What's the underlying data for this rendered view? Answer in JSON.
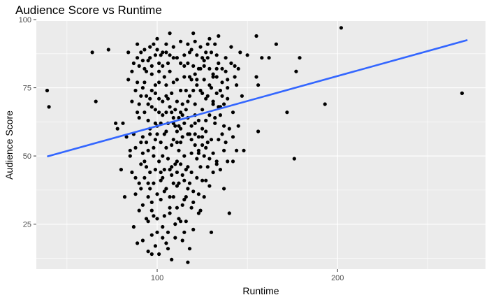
{
  "chart_data": {
    "type": "scatter",
    "title": "Audience Score vs Runtime",
    "xlabel": "Runtime",
    "ylabel": "Audience Score",
    "xlim": [
      33,
      282
    ],
    "ylim": [
      8.5,
      99.5
    ],
    "x_ticks": [
      100,
      200
    ],
    "x_minor_ticks": [
      50,
      150,
      250
    ],
    "y_ticks": [
      25,
      50,
      75,
      100
    ],
    "y_minor_ticks": [
      12.5,
      37.5,
      62.5,
      87.5
    ],
    "grid": true,
    "colors": {
      "panel": "#ebebeb",
      "grid": "#ffffff",
      "point": "#000000",
      "fit_line": "#3366ff"
    },
    "fit_line": {
      "x": [
        39,
        272
      ],
      "y": [
        49.8,
        92.5
      ]
    },
    "points": [
      [
        39,
        74
      ],
      [
        40,
        68
      ],
      [
        64,
        88
      ],
      [
        66,
        70
      ],
      [
        73,
        89
      ],
      [
        77,
        62
      ],
      [
        78,
        60
      ],
      [
        80,
        45
      ],
      [
        82,
        35
      ],
      [
        84,
        78
      ],
      [
        85,
        52
      ],
      [
        86,
        70
      ],
      [
        87,
        24
      ],
      [
        88,
        42
      ],
      [
        89,
        18
      ],
      [
        89,
        66
      ],
      [
        90,
        30
      ],
      [
        91,
        55
      ],
      [
        92,
        85
      ],
      [
        92,
        19
      ],
      [
        93,
        48
      ],
      [
        94,
        72
      ],
      [
        95,
        15
      ],
      [
        95,
        40
      ],
      [
        96,
        60
      ],
      [
        96,
        90
      ],
      [
        97,
        14
      ],
      [
        97,
        33
      ],
      [
        98,
        50
      ],
      [
        99,
        76
      ],
      [
        100,
        27
      ],
      [
        100,
        58
      ],
      [
        101,
        81
      ],
      [
        102,
        44
      ],
      [
        103,
        65
      ],
      [
        103,
        20
      ],
      [
        104,
        37
      ],
      [
        105,
        88
      ],
      [
        105,
        53
      ],
      [
        106,
        16
      ],
      [
        106,
        71
      ],
      [
        107,
        95
      ],
      [
        107,
        31
      ],
      [
        108,
        46
      ],
      [
        109,
        62
      ],
      [
        109,
        86
      ],
      [
        110,
        25
      ],
      [
        111,
        55
      ],
      [
        111,
        78
      ],
      [
        112,
        40
      ],
      [
        113,
        92
      ],
      [
        113,
        66
      ],
      [
        114,
        19
      ],
      [
        115,
        50
      ],
      [
        115,
        83
      ],
      [
        116,
        35
      ],
      [
        117,
        11
      ],
      [
        117,
        70
      ],
      [
        118,
        58
      ],
      [
        118,
        88
      ],
      [
        119,
        44
      ],
      [
        120,
        95
      ],
      [
        120,
        23
      ],
      [
        121,
        65
      ],
      [
        122,
        76
      ],
      [
        123,
        52
      ],
      [
        124,
        30
      ],
      [
        124,
        90
      ],
      [
        125,
        60
      ],
      [
        126,
        85
      ],
      [
        127,
        41
      ],
      [
        128,
        72
      ],
      [
        129,
        93
      ],
      [
        130,
        22
      ],
      [
        130,
        56
      ],
      [
        131,
        80
      ],
      [
        132,
        64
      ],
      [
        133,
        47
      ],
      [
        134,
        94
      ],
      [
        135,
        68
      ],
      [
        136,
        58
      ],
      [
        137,
        38
      ],
      [
        138,
        86
      ],
      [
        139,
        75
      ],
      [
        140,
        29
      ],
      [
        141,
        90
      ],
      [
        142,
        48
      ],
      [
        143,
        79
      ],
      [
        144,
        52
      ],
      [
        145,
        61
      ],
      [
        146,
        88
      ],
      [
        150,
        87
      ],
      [
        155,
        94
      ],
      [
        155,
        79
      ],
      [
        156,
        76
      ],
      [
        156,
        59
      ],
      [
        158,
        86
      ],
      [
        162,
        86
      ],
      [
        166,
        91
      ],
      [
        172,
        66
      ],
      [
        176,
        49
      ],
      [
        177,
        81
      ],
      [
        179,
        86
      ],
      [
        193,
        69
      ],
      [
        202,
        97
      ],
      [
        269,
        73
      ],
      [
        84,
        88
      ],
      [
        86,
        81
      ],
      [
        88,
        74
      ],
      [
        90,
        64
      ],
      [
        92,
        57
      ],
      [
        94,
        46
      ],
      [
        96,
        38
      ],
      [
        98,
        28
      ],
      [
        100,
        22
      ],
      [
        102,
        34
      ],
      [
        104,
        28
      ],
      [
        106,
        22
      ],
      [
        108,
        12
      ],
      [
        110,
        20
      ],
      [
        112,
        27
      ],
      [
        114,
        32
      ],
      [
        116,
        26
      ],
      [
        118,
        16
      ],
      [
        100,
        93
      ],
      [
        102,
        87
      ],
      [
        104,
        79
      ],
      [
        106,
        84
      ],
      [
        108,
        73
      ],
      [
        110,
        67
      ],
      [
        112,
        61
      ],
      [
        114,
        57
      ],
      [
        116,
        45
      ],
      [
        118,
        40
      ],
      [
        120,
        37
      ],
      [
        122,
        42
      ],
      [
        124,
        46
      ],
      [
        126,
        50
      ],
      [
        128,
        55
      ],
      [
        90,
        83
      ],
      [
        93,
        77
      ],
      [
        96,
        71
      ],
      [
        99,
        67
      ],
      [
        102,
        62
      ],
      [
        105,
        59
      ],
      [
        108,
        54
      ],
      [
        111,
        48
      ],
      [
        114,
        43
      ],
      [
        117,
        38
      ],
      [
        120,
        33
      ],
      [
        123,
        29
      ],
      [
        126,
        35
      ],
      [
        129,
        39
      ],
      [
        91,
        47
      ],
      [
        95,
        52
      ],
      [
        99,
        56
      ],
      [
        103,
        50
      ],
      [
        107,
        45
      ],
      [
        111,
        39
      ],
      [
        115,
        34
      ],
      [
        119,
        31
      ],
      [
        123,
        36
      ],
      [
        127,
        63
      ],
      [
        131,
        69
      ],
      [
        135,
        74
      ],
      [
        139,
        78
      ],
      [
        143,
        83
      ],
      [
        133,
        87
      ],
      [
        129,
        82
      ],
      [
        125,
        73
      ],
      [
        121,
        69
      ],
      [
        117,
        64
      ],
      [
        113,
        60
      ],
      [
        109,
        56
      ],
      [
        105,
        66
      ],
      [
        101,
        71
      ],
      [
        97,
        80
      ],
      [
        93,
        89
      ],
      [
        89,
        91
      ],
      [
        87,
        58
      ],
      [
        85,
        50
      ],
      [
        83,
        57
      ],
      [
        81,
        62
      ],
      [
        95,
        26
      ],
      [
        97,
        21
      ],
      [
        99,
        17
      ],
      [
        101,
        14
      ],
      [
        103,
        24
      ],
      [
        105,
        18
      ],
      [
        107,
        29
      ],
      [
        109,
        35
      ],
      [
        111,
        31
      ],
      [
        113,
        26
      ],
      [
        115,
        22
      ],
      [
        119,
        51
      ],
      [
        121,
        58
      ],
      [
        123,
        63
      ],
      [
        125,
        67
      ],
      [
        127,
        71
      ],
      [
        130,
        75
      ],
      [
        133,
        79
      ],
      [
        136,
        82
      ],
      [
        139,
        71
      ],
      [
        142,
        66
      ],
      [
        137,
        61
      ],
      [
        134,
        56
      ],
      [
        131,
        51
      ],
      [
        128,
        46
      ],
      [
        125,
        41
      ],
      [
        122,
        49
      ],
      [
        88,
        36
      ],
      [
        90,
        40
      ],
      [
        92,
        32
      ],
      [
        94,
        27
      ],
      [
        96,
        44
      ],
      [
        98,
        40
      ],
      [
        100,
        36
      ],
      [
        102,
        41
      ],
      [
        104,
        45
      ],
      [
        106,
        49
      ],
      [
        108,
        43
      ],
      [
        110,
        47
      ],
      [
        112,
        52
      ],
      [
        114,
        65
      ],
      [
        116,
        74
      ],
      [
        118,
        79
      ],
      [
        120,
        83
      ],
      [
        122,
        87
      ],
      [
        124,
        82
      ],
      [
        126,
        78
      ],
      [
        128,
        91
      ],
      [
        132,
        62
      ],
      [
        134,
        68
      ],
      [
        136,
        72
      ],
      [
        138,
        55
      ],
      [
        140,
        60
      ],
      [
        95,
        63
      ],
      [
        97,
        68
      ],
      [
        99,
        73
      ],
      [
        101,
        77
      ],
      [
        103,
        83
      ],
      [
        105,
        76
      ],
      [
        107,
        81
      ],
      [
        109,
        77
      ],
      [
        111,
        70
      ],
      [
        113,
        74
      ],
      [
        115,
        79
      ],
      [
        117,
        84
      ],
      [
        119,
        89
      ],
      [
        121,
        92
      ],
      [
        86,
        44
      ],
      [
        88,
        53
      ],
      [
        90,
        69
      ],
      [
        92,
        75
      ],
      [
        94,
        81
      ],
      [
        96,
        86
      ],
      [
        98,
        91
      ],
      [
        100,
        89
      ],
      [
        91,
        38
      ],
      [
        93,
        42
      ],
      [
        95,
        35
      ],
      [
        97,
        30
      ],
      [
        99,
        45
      ],
      [
        101,
        48
      ],
      [
        103,
        42
      ],
      [
        105,
        38
      ],
      [
        107,
        35
      ],
      [
        109,
        40
      ],
      [
        111,
        44
      ],
      [
        113,
        47
      ],
      [
        115,
        41
      ],
      [
        117,
        46
      ],
      [
        119,
        56
      ],
      [
        121,
        62
      ],
      [
        123,
        57
      ],
      [
        125,
        54
      ],
      [
        127,
        59
      ],
      [
        129,
        65
      ],
      [
        131,
        70
      ],
      [
        133,
        73
      ],
      [
        135,
        65
      ],
      [
        137,
        69
      ],
      [
        89,
        77
      ],
      [
        91,
        72
      ],
      [
        93,
        66
      ],
      [
        95,
        69
      ],
      [
        97,
        74
      ],
      [
        99,
        62
      ],
      [
        101,
        66
      ],
      [
        103,
        70
      ],
      [
        105,
        72
      ],
      [
        107,
        68
      ],
      [
        109,
        64
      ],
      [
        111,
        59
      ],
      [
        113,
        55
      ],
      [
        115,
        62
      ],
      [
        117,
        58
      ],
      [
        119,
        61
      ],
      [
        121,
        54
      ],
      [
        123,
        51
      ],
      [
        125,
        57
      ],
      [
        127,
        53
      ],
      [
        129,
        49
      ],
      [
        131,
        44
      ],
      [
        133,
        48
      ],
      [
        135,
        45
      ],
      [
        137,
        52
      ],
      [
        139,
        48
      ],
      [
        141,
        84
      ],
      [
        144,
        76
      ],
      [
        147,
        72
      ],
      [
        145,
        82
      ],
      [
        148,
        52
      ],
      [
        142,
        57
      ],
      [
        92,
        51
      ],
      [
        94,
        55
      ],
      [
        96,
        58
      ],
      [
        98,
        53
      ],
      [
        100,
        61
      ],
      [
        102,
        55
      ],
      [
        104,
        58
      ],
      [
        106,
        62
      ],
      [
        108,
        66
      ],
      [
        110,
        61
      ],
      [
        112,
        64
      ],
      [
        114,
        69
      ],
      [
        116,
        67
      ],
      [
        118,
        72
      ],
      [
        120,
        74
      ],
      [
        122,
        78
      ],
      [
        124,
        74
      ],
      [
        126,
        83
      ],
      [
        128,
        86
      ],
      [
        130,
        88
      ],
      [
        132,
        91
      ],
      [
        134,
        84
      ],
      [
        136,
        77
      ],
      [
        138,
        81
      ],
      [
        87,
        84
      ],
      [
        89,
        86
      ],
      [
        91,
        88
      ],
      [
        93,
        82
      ],
      [
        95,
        85
      ],
      [
        97,
        83
      ],
      [
        99,
        87
      ],
      [
        101,
        84
      ],
      [
        103,
        88
      ],
      [
        105,
        91
      ],
      [
        107,
        87
      ],
      [
        109,
        90
      ],
      [
        111,
        86
      ],
      [
        113,
        84
      ],
      [
        115,
        87
      ],
      [
        117,
        91
      ],
      [
        119,
        78
      ],
      [
        121,
        80
      ],
      [
        123,
        82
      ],
      [
        125,
        86
      ],
      [
        127,
        88
      ],
      [
        129,
        76
      ],
      [
        131,
        79
      ],
      [
        133,
        82
      ]
    ]
  }
}
